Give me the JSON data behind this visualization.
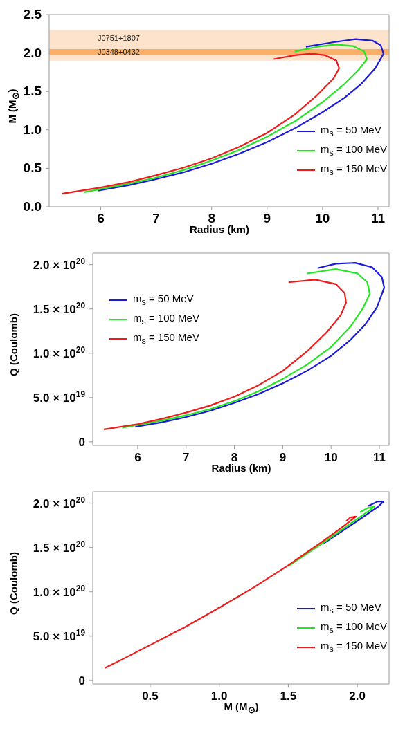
{
  "chart_data": [
    {
      "type": "line",
      "xlabel": "Radius (km)",
      "ylabel": "M (M$_{⊙}$)",
      "xlim": [
        5.07,
        11.2
      ],
      "xticks": [
        6,
        7,
        8,
        9,
        10,
        11
      ],
      "ylim": [
        0,
        2.5
      ],
      "yticks": [
        {
          "value": 0,
          "label": "0.0"
        },
        {
          "value": 0.5,
          "label": "0.5"
        },
        {
          "value": 1,
          "label": "1.0"
        },
        {
          "value": 1.5,
          "label": "1.5"
        },
        {
          "value": 2,
          "label": "2.0"
        },
        {
          "value": 2.5,
          "label": "2.5"
        }
      ],
      "legend": "bottom right",
      "bands": [
        {
          "axis": "y",
          "from": 1.9,
          "to": 2.3,
          "label": "J0751+1807",
          "color": "#fde3cc"
        },
        {
          "axis": "y",
          "from": 1.97,
          "to": 2.05,
          "label": "J0348+0432",
          "color": "#fbb06a"
        }
      ],
      "series": [
        {
          "name": "m$_{s}$ = 50 MeV",
          "color": "#1a1adb",
          "x": [
            5.95,
            6.5,
            7,
            7.5,
            8,
            8.5,
            9,
            9.5,
            10,
            10.4,
            10.7,
            10.95,
            11.1,
            11.05,
            10.9,
            10.6,
            10.2,
            9.7
          ],
          "values": [
            0.21,
            0.28,
            0.36,
            0.45,
            0.56,
            0.69,
            0.84,
            1.02,
            1.23,
            1.42,
            1.6,
            1.8,
            1.99,
            2.1,
            2.16,
            2.18,
            2.14,
            2.08
          ]
        },
        {
          "name": "m$_{s}$ = 100 MeV",
          "color": "#22e622",
          "x": [
            5.7,
            6,
            6.5,
            7,
            7.5,
            8,
            8.5,
            9,
            9.5,
            10,
            10.4,
            10.65,
            10.8,
            10.75,
            10.55,
            10.25,
            9.9,
            9.5
          ],
          "values": [
            0.19,
            0.23,
            0.3,
            0.38,
            0.48,
            0.6,
            0.74,
            0.91,
            1.11,
            1.36,
            1.6,
            1.78,
            1.92,
            2.02,
            2.09,
            2.11,
            2.08,
            2.02
          ]
        },
        {
          "name": "m$_{s}$ = 150 MeV",
          "color": "#f01a1a",
          "x": [
            5.3,
            6,
            6.5,
            7,
            7.5,
            8,
            8.5,
            9,
            9.5,
            9.9,
            10.2,
            10.3,
            10.25,
            10.05,
            9.8,
            9.5,
            9.12
          ],
          "values": [
            0.17,
            0.25,
            0.32,
            0.41,
            0.51,
            0.63,
            0.78,
            0.96,
            1.2,
            1.45,
            1.67,
            1.8,
            1.9,
            1.97,
            1.99,
            1.97,
            1.92
          ]
        }
      ]
    },
    {
      "type": "line",
      "xlabel": "Radius (km)",
      "ylabel": "Q (Coulomb)",
      "xlim": [
        5.07,
        11.2
      ],
      "xticks": [
        6,
        7,
        8,
        9,
        10,
        11
      ],
      "ylim": [
        -4e+18,
        2.13e+20
      ],
      "yticks": [
        0,
        {
          "value": 5e+19,
          "label": "5.0 × 10$^{19}$"
        },
        {
          "value": 1e+20,
          "label": "1.0 × 10$^{20}$"
        },
        {
          "value": 1.5e+20,
          "label": "1.5 × 10$^{20}$"
        },
        {
          "value": 2e+20,
          "label": "2.0 × 10$^{20}$"
        }
      ],
      "legend": "top left",
      "series": [
        {
          "name": "m$_{s}$ = 50 MeV",
          "color": "#1a1adb",
          "x": [
            5.95,
            6.5,
            7,
            7.5,
            8,
            8.5,
            9,
            9.5,
            10,
            10.4,
            10.7,
            10.95,
            11.1,
            11.05,
            10.85,
            10.5,
            10.1,
            9.72
          ],
          "values": [
            1.7e+19,
            2.2e+19,
            2.8e+19,
            3.5e+19,
            4.4e+19,
            5.4e+19,
            6.6e+19,
            8e+19,
            9.7e+19,
            1.15e+20,
            1.32e+20,
            1.52e+20,
            1.74e+20,
            1.86e+20,
            1.97e+20,
            2.02e+20,
            2.01e+20,
            1.96e+20
          ]
        },
        {
          "name": "m$_{s}$ = 100 MeV",
          "color": "#22e622",
          "x": [
            5.68,
            6,
            6.5,
            7,
            7.5,
            8,
            8.5,
            9,
            9.5,
            10,
            10.4,
            10.65,
            10.8,
            10.75,
            10.55,
            10.1,
            9.5
          ],
          "values": [
            1.6e+19,
            1.9e+19,
            2.4e+19,
            3e+19,
            3.7e+19,
            4.6e+19,
            5.7e+19,
            7.1e+19,
            8.7e+19,
            1.07e+20,
            1.3e+20,
            1.5e+20,
            1.67e+20,
            1.8e+20,
            1.9e+20,
            1.95e+20,
            1.9e+20
          ]
        },
        {
          "name": "m$_{s}$ = 150 MeV",
          "color": "#f01a1a",
          "x": [
            5.3,
            6,
            6.5,
            7,
            7.5,
            8,
            8.5,
            9,
            9.5,
            9.9,
            10.2,
            10.31,
            10.28,
            10.1,
            9.67,
            9.12
          ],
          "values": [
            1.4e+19,
            2e+19,
            2.6e+19,
            3.3e+19,
            4.1e+19,
            5.1e+19,
            6.4e+19,
            8e+19,
            1.02e+20,
            1.23e+20,
            1.43e+20,
            1.57e+20,
            1.68e+20,
            1.78e+20,
            1.83e+20,
            1.8e+20
          ]
        }
      ]
    },
    {
      "type": "line",
      "xlabel": "M (M$_{⊙}$)",
      "ylabel": "Q (Coulomb)",
      "xlim": [
        0.084,
        2.23
      ],
      "xticks": [
        {
          "value": 0.5,
          "label": "0.5"
        },
        {
          "value": 1,
          "label": "1.0"
        },
        {
          "value": 1.5,
          "label": "1.5"
        },
        {
          "value": 2,
          "label": "2.0"
        }
      ],
      "ylim": [
        -4e+18,
        2.13e+20
      ],
      "yticks": [
        0,
        {
          "value": 5e+19,
          "label": "5.0 × 10$^{19}$"
        },
        {
          "value": 1e+20,
          "label": "1.0 × 10$^{20}$"
        },
        {
          "value": 1.5e+20,
          "label": "1.5 × 10$^{20}$"
        },
        {
          "value": 2e+20,
          "label": "2.0 × 10$^{20}$"
        }
      ],
      "legend": "bottom right",
      "series": [
        {
          "name": "m$_{s}$ = 50 MeV",
          "color": "#1a1adb",
          "x": [
            1.75,
            2.0,
            2.15,
            2.19,
            2.15,
            2.08
          ],
          "values": [
            1.54e+20,
            1.8e+20,
            1.96e+20,
            2.02e+20,
            2.02e+20,
            1.97e+20
          ]
        },
        {
          "name": "m$_{s}$ = 100 MeV",
          "color": "#22e622",
          "x": [
            1.5,
            1.75,
            1.95,
            2.08,
            2.12,
            2.08,
            2.02
          ],
          "values": [
            1.29e+20,
            1.55e+20,
            1.77e+20,
            1.91e+20,
            1.96e+20,
            1.95e+20,
            1.9e+20
          ]
        },
        {
          "name": "m$_{s}$ = 150 MeV",
          "color": "#f01a1a",
          "x": [
            0.17,
            0.3,
            0.5,
            0.75,
            1.0,
            1.25,
            1.5,
            1.75,
            1.9,
            1.99,
            1.95,
            1.92
          ],
          "values": [
            1.4e+19,
            2.4e+19,
            4e+19,
            6e+19,
            8.2e+19,
            1.05e+20,
            1.3e+20,
            1.57e+20,
            1.74e+20,
            1.85e+20,
            1.84e+20,
            1.8e+20
          ]
        }
      ]
    }
  ]
}
